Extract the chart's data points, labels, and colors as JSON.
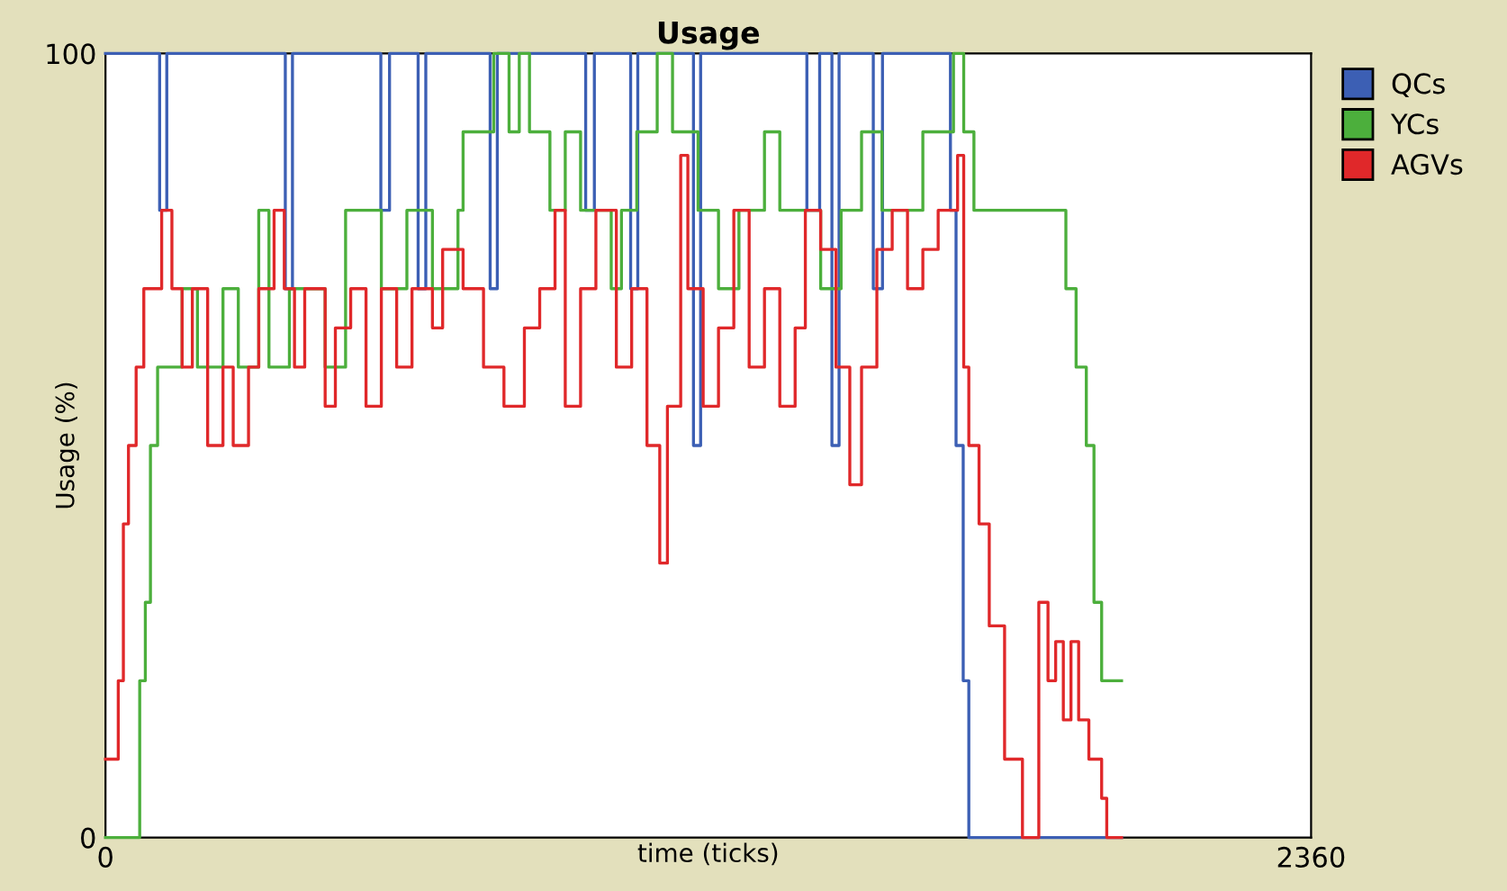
{
  "chart_data": {
    "type": "step",
    "title": "Usage",
    "xlabel": "time (ticks)",
    "ylabel": "Usage (%)",
    "xlim": [
      0,
      2360
    ],
    "ylim": [
      0,
      100
    ],
    "xticks": [
      0,
      2360
    ],
    "yticks": [
      0,
      100
    ],
    "grid": false,
    "legend": "top right",
    "marker": "none",
    "line_style": "solid",
    "series": [
      {
        "name": "QCs",
        "color": "#3c5fb4",
        "x": [
          0,
          106,
          120,
          352,
          366,
          539,
          556,
          612,
          627,
          753,
          767,
          940,
          957,
          1028,
          1042,
          1151,
          1165,
          1373,
          1398,
          1422,
          1436,
          1503,
          1521,
          1654,
          1665,
          1679,
          1690,
          1989
        ],
        "values": [
          100,
          80,
          100,
          70,
          100,
          80,
          100,
          70,
          100,
          70,
          100,
          80,
          100,
          70,
          100,
          50,
          100,
          80,
          100,
          50,
          100,
          70,
          100,
          80,
          50,
          20,
          0,
          0
        ]
      },
      {
        "name": "YCs",
        "color": "#4caf3c",
        "x": [
          0,
          67,
          78,
          88,
          102,
          150,
          180,
          210,
          230,
          260,
          300,
          320,
          360,
          420,
          430,
          470,
          520,
          540,
          590,
          640,
          690,
          700,
          760,
          790,
          810,
          830,
          870,
          900,
          930,
          990,
          1010,
          1040,
          1080,
          1110,
          1160,
          1200,
          1240,
          1290,
          1320,
          1370,
          1400,
          1440,
          1480,
          1520,
          1560,
          1600,
          1660,
          1680,
          1700,
          1880,
          1900,
          1920,
          1935,
          1950,
          1989
        ],
        "values": [
          0,
          20,
          30,
          50,
          60,
          70,
          60,
          60,
          70,
          60,
          80,
          60,
          70,
          70,
          60,
          80,
          80,
          70,
          80,
          70,
          80,
          90,
          100,
          90,
          100,
          90,
          80,
          90,
          80,
          70,
          80,
          90,
          100,
          90,
          80,
          70,
          80,
          90,
          80,
          80,
          70,
          80,
          90,
          80,
          80,
          90,
          100,
          90,
          80,
          70,
          60,
          50,
          30,
          20,
          20
        ]
      },
      {
        "name": "AGVs",
        "color": "#e0282a",
        "x": [
          0,
          25,
          35,
          45,
          60,
          75,
          110,
          130,
          150,
          170,
          200,
          230,
          250,
          280,
          300,
          330,
          350,
          370,
          390,
          430,
          450,
          480,
          510,
          540,
          570,
          600,
          640,
          660,
          700,
          740,
          780,
          820,
          850,
          880,
          900,
          930,
          960,
          1000,
          1030,
          1060,
          1085,
          1100,
          1126,
          1140,
          1170,
          1200,
          1230,
          1260,
          1290,
          1320,
          1350,
          1370,
          1400,
          1430,
          1457,
          1480,
          1510,
          1540,
          1570,
          1600,
          1630,
          1668,
          1680,
          1690,
          1710,
          1730,
          1760,
          1795,
          1815,
          1827,
          1845,
          1860,
          1875,
          1890,
          1905,
          1925,
          1950,
          1960,
          1989
        ],
        "values": [
          10,
          20,
          40,
          50,
          60,
          70,
          80,
          70,
          60,
          70,
          50,
          60,
          50,
          60,
          70,
          80,
          70,
          60,
          70,
          55,
          65,
          70,
          55,
          70,
          60,
          70,
          65,
          75,
          70,
          60,
          55,
          65,
          70,
          80,
          55,
          70,
          80,
          60,
          70,
          50,
          35,
          55,
          87,
          70,
          55,
          65,
          80,
          60,
          70,
          55,
          65,
          80,
          75,
          60,
          45,
          60,
          75,
          80,
          70,
          75,
          80,
          87,
          60,
          50,
          40,
          27,
          10,
          0,
          0,
          30,
          20,
          25,
          15,
          25,
          15,
          10,
          5,
          0,
          0
        ]
      }
    ]
  }
}
